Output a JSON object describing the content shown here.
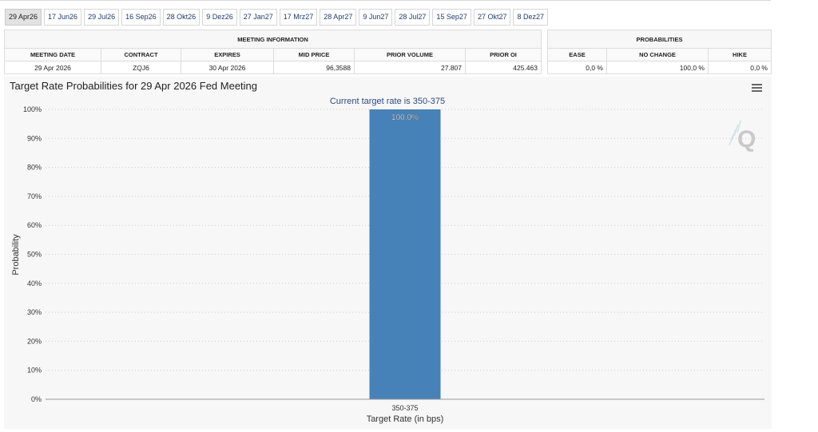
{
  "tabs": [
    {
      "label": "29 Apr26",
      "active": true
    },
    {
      "label": "17 Jun26",
      "active": false
    },
    {
      "label": "29 Jul26",
      "active": false
    },
    {
      "label": "16 Sep26",
      "active": false
    },
    {
      "label": "28 Okt26",
      "active": false
    },
    {
      "label": "9 Dez26",
      "active": false
    },
    {
      "label": "27 Jan27",
      "active": false
    },
    {
      "label": "17 Mrz27",
      "active": false
    },
    {
      "label": "28 Apr27",
      "active": false
    },
    {
      "label": "9 Jun27",
      "active": false
    },
    {
      "label": "28 Jul27",
      "active": false
    },
    {
      "label": "15 Sep27",
      "active": false
    },
    {
      "label": "27 Okt27",
      "active": false
    },
    {
      "label": "8 Dez27",
      "active": false
    }
  ],
  "meeting_info": {
    "group_label": "MEETING INFORMATION",
    "headers": [
      "MEETING DATE",
      "CONTRACT",
      "EXPIRES",
      "MID PRICE",
      "PRIOR VOLUME",
      "PRIOR OI"
    ],
    "values": [
      "29 Apr 2026",
      "ZQJ6",
      "30 Apr 2026",
      "96,3588",
      "27.807",
      "425.463"
    ]
  },
  "probabilities": {
    "group_label": "PROBABILITIES",
    "headers": [
      "EASE",
      "NO CHANGE",
      "HIKE"
    ],
    "values": [
      "0,0 %",
      "100,0 %",
      "0,0 %"
    ]
  },
  "colors": {
    "bar": "#4682b8",
    "grid": "#cccccc",
    "subtitle": "#2e4a80"
  },
  "chart_data": {
    "type": "bar",
    "title": "Target Rate Probabilities for 29 Apr 2026 Fed Meeting",
    "subtitle": "Current target rate is 350-375",
    "xlabel": "Target Rate (in bps)",
    "ylabel": "Probability",
    "categories": [
      "350-375"
    ],
    "values": [
      100.0
    ],
    "data_labels": [
      "100.0%"
    ],
    "ylim": [
      0,
      100
    ],
    "yticks": [
      "0%",
      "10%",
      "20%",
      "30%",
      "40%",
      "50%",
      "60%",
      "70%",
      "80%",
      "90%",
      "100%"
    ],
    "grid": true,
    "watermark": "Q"
  }
}
